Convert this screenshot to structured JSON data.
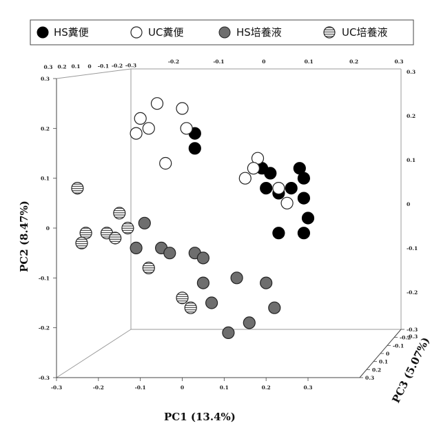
{
  "colors": {
    "hs_feces": "#000000",
    "uc_feces": "#ffffff",
    "hs_culture": "#6e6e6e",
    "uc_culture": "#ffffff",
    "marker_stroke": "#222222"
  },
  "chart_data": {
    "type": "scatter",
    "projection": "3d",
    "xlabel": "PC1 (13.4%)",
    "ylabel": "PC2 (8.47%)",
    "zlabel": "PC3 (5.07%)",
    "legend_position": "top",
    "legend": [
      {
        "name": "HS糞便",
        "style": "filled-black"
      },
      {
        "name": "UC糞便",
        "style": "open"
      },
      {
        "name": "HS培養液",
        "style": "filled-gray"
      },
      {
        "name": "UC培養液",
        "style": "hatched"
      }
    ],
    "axes": {
      "pc1": {
        "range": [
          -0.3,
          0.3
        ],
        "ticks": [
          "-0.3",
          "-0.2",
          "-0.1",
          "0",
          "0.1",
          "0.2",
          "0.3"
        ]
      },
      "pc2": {
        "range": [
          -0.3,
          0.3
        ],
        "ticks": [
          "-0.3",
          "-0.2",
          "-0.1",
          "0",
          "0.1",
          "0.2",
          "0.3"
        ]
      },
      "pc3": {
        "range": [
          -0.3,
          0.3
        ],
        "ticks": [
          "-0.3",
          "-0.2",
          "-0.1",
          "0",
          "0.1",
          "0.2",
          "0.3"
        ]
      },
      "top_ticks_left": [
        "0.3",
        "0.2",
        "0.1",
        "0",
        "-0.1",
        "-0.2",
        "-0.3"
      ],
      "top_ticks_right": [
        "-0.2",
        "-0.1",
        "0",
        "0.1",
        "0.2",
        "0.3"
      ],
      "right_ticks": [
        "0.3",
        "0.2",
        "0.1",
        "0",
        "-0.1",
        "-0.2",
        "-0.3"
      ]
    },
    "series": [
      {
        "name": "HS糞便",
        "style": "filled-black",
        "points": [
          {
            "x": 0.03,
            "y": 0.19
          },
          {
            "x": 0.03,
            "y": 0.16
          },
          {
            "x": 0.19,
            "y": 0.12
          },
          {
            "x": 0.21,
            "y": 0.11
          },
          {
            "x": 0.2,
            "y": 0.08
          },
          {
            "x": 0.23,
            "y": 0.07
          },
          {
            "x": 0.28,
            "y": 0.12
          },
          {
            "x": 0.29,
            "y": 0.1
          },
          {
            "x": 0.26,
            "y": 0.08
          },
          {
            "x": 0.29,
            "y": 0.06
          },
          {
            "x": 0.3,
            "y": 0.02
          },
          {
            "x": 0.23,
            "y": -0.01
          },
          {
            "x": 0.29,
            "y": -0.01
          }
        ]
      },
      {
        "name": "UC糞便",
        "style": "open",
        "points": [
          {
            "x": -0.1,
            "y": 0.22
          },
          {
            "x": -0.06,
            "y": 0.25
          },
          {
            "x": -0.08,
            "y": 0.2
          },
          {
            "x": -0.11,
            "y": 0.19
          },
          {
            "x": 0.0,
            "y": 0.24
          },
          {
            "x": 0.01,
            "y": 0.2
          },
          {
            "x": -0.04,
            "y": 0.13
          },
          {
            "x": 0.18,
            "y": 0.14
          },
          {
            "x": 0.17,
            "y": 0.12
          },
          {
            "x": 0.15,
            "y": 0.1
          },
          {
            "x": 0.23,
            "y": 0.08
          },
          {
            "x": 0.25,
            "y": 0.05
          }
        ]
      },
      {
        "name": "HS培養液",
        "style": "filled-gray",
        "points": [
          {
            "x": -0.09,
            "y": 0.01
          },
          {
            "x": -0.11,
            "y": -0.04
          },
          {
            "x": -0.05,
            "y": -0.04
          },
          {
            "x": -0.03,
            "y": -0.05
          },
          {
            "x": 0.03,
            "y": -0.05
          },
          {
            "x": 0.05,
            "y": -0.06
          },
          {
            "x": 0.05,
            "y": -0.11
          },
          {
            "x": 0.07,
            "y": -0.15
          },
          {
            "x": 0.13,
            "y": -0.1
          },
          {
            "x": 0.2,
            "y": -0.11
          },
          {
            "x": 0.22,
            "y": -0.16
          },
          {
            "x": 0.16,
            "y": -0.19
          },
          {
            "x": 0.11,
            "y": -0.21
          }
        ]
      },
      {
        "name": "UC培養液",
        "style": "hatched",
        "points": [
          {
            "x": -0.25,
            "y": 0.08
          },
          {
            "x": -0.15,
            "y": 0.03
          },
          {
            "x": -0.13,
            "y": 0.0
          },
          {
            "x": -0.18,
            "y": -0.01
          },
          {
            "x": -0.16,
            "y": -0.02
          },
          {
            "x": -0.23,
            "y": -0.01
          },
          {
            "x": -0.24,
            "y": -0.03
          },
          {
            "x": -0.08,
            "y": -0.08
          },
          {
            "x": 0.0,
            "y": -0.14
          },
          {
            "x": 0.02,
            "y": -0.16
          }
        ]
      }
    ]
  }
}
